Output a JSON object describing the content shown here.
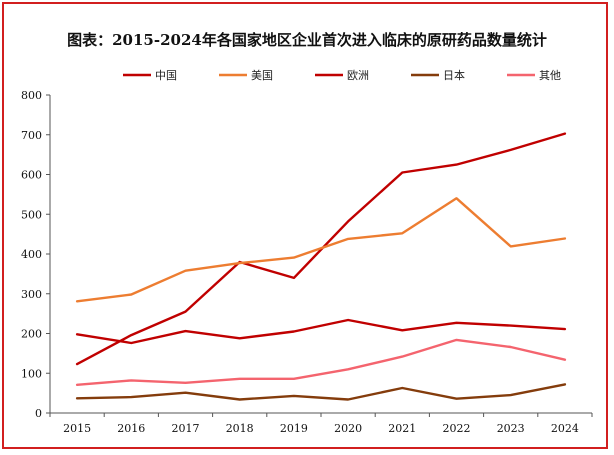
{
  "chart_data": {
    "type": "line",
    "title": "图表：2015-2024年各国家地区企业首次进入临床的原研药品数量统计",
    "xlabel": "",
    "ylabel": "",
    "categories": [
      "2015",
      "2016",
      "2017",
      "2018",
      "2019",
      "2020",
      "2021",
      "2022",
      "2023",
      "2024"
    ],
    "ylim": [
      0,
      800
    ],
    "yticks": [
      0,
      100,
      200,
      300,
      400,
      500,
      600,
      700,
      800
    ],
    "legend_position": "top",
    "grid": false,
    "series": [
      {
        "name": "中国",
        "color": "#c00000",
        "values": [
          123,
          196,
          255,
          380,
          340,
          482,
          605,
          625,
          662,
          703
        ]
      },
      {
        "name": "美国",
        "color": "#ed7d31",
        "values": [
          281,
          298,
          358,
          377,
          391,
          438,
          452,
          540,
          419,
          439
        ]
      },
      {
        "name": "欧洲",
        "color": "#c00000",
        "values": [
          198,
          176,
          206,
          188,
          205,
          234,
          208,
          227,
          220,
          211
        ]
      },
      {
        "name": "日本",
        "color": "#843c0c",
        "values": [
          37,
          40,
          51,
          34,
          43,
          34,
          63,
          36,
          45,
          72
        ]
      },
      {
        "name": "其他",
        "color": "#f4646e",
        "values": [
          71,
          82,
          76,
          86,
          86,
          110,
          142,
          184,
          166,
          134
        ]
      }
    ]
  }
}
